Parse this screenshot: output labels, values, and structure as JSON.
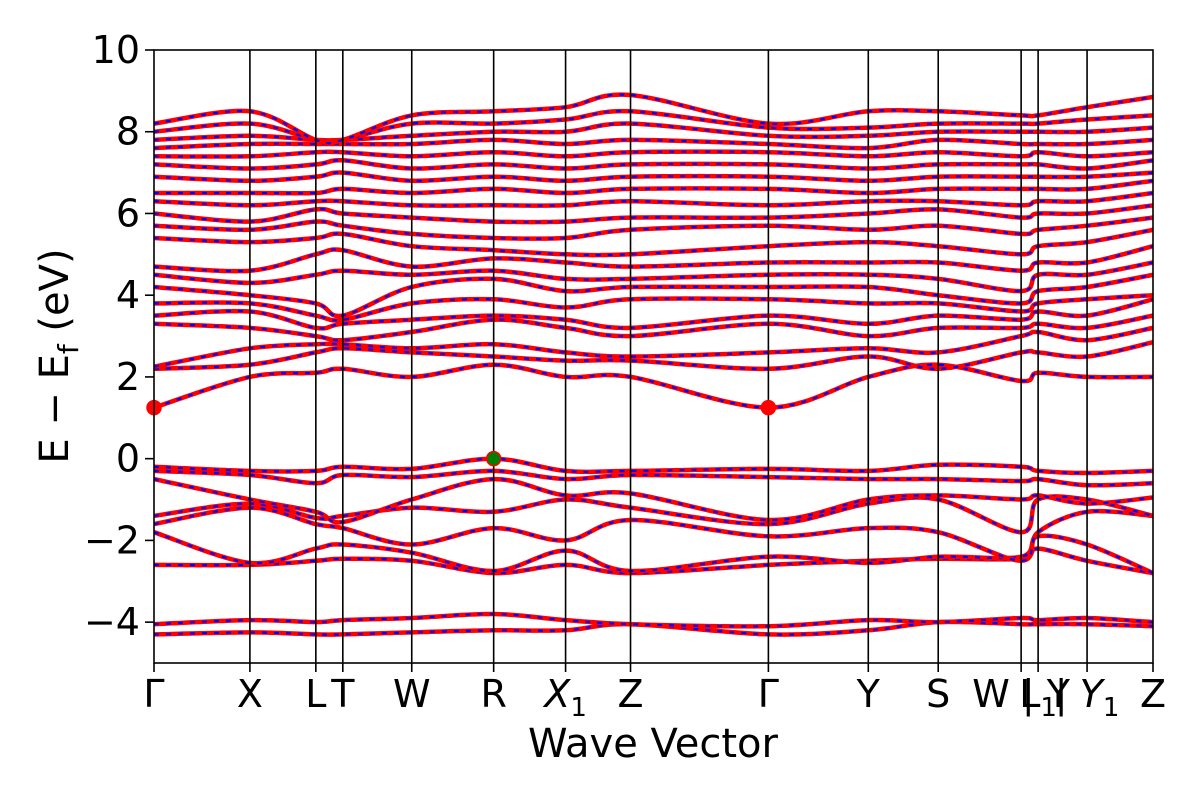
{
  "chart_data": {
    "type": "line",
    "xlabel": "Wave Vector",
    "ylabel": "E − E_f (eV)",
    "ylabel_main": "E − E",
    "ylabel_sub": "f",
    "ylabel_unit": " (eV)",
    "ylim": [
      -5,
      10
    ],
    "yticks": [
      10,
      8,
      6,
      4,
      2,
      0,
      -2,
      -4
    ],
    "ytick_labels": [
      "10",
      "8",
      "6",
      "4",
      "2",
      "0",
      "−2",
      "−4"
    ],
    "grid": false,
    "colors": {
      "band_solid": "#ff0000",
      "band_dash": "#0000ff",
      "cbm_marker": "#ff0000",
      "vbm_marker": "#008000",
      "kpath_line": "#000000"
    },
    "kpoints": [
      {
        "label": "Γ",
        "x": 0.0
      },
      {
        "label": "X",
        "x": 0.096
      },
      {
        "label": "L",
        "x": 0.162
      },
      {
        "label": "T",
        "x": 0.189
      },
      {
        "label": "W",
        "x": 0.258
      },
      {
        "label": "R",
        "x": 0.34
      },
      {
        "label": "X",
        "sub": "1",
        "italic": true,
        "x": 0.412
      },
      {
        "label": "Z",
        "x": 0.477
      },
      {
        "label": "Γ",
        "x": 0.615
      },
      {
        "label": "Y",
        "x": 0.715
      },
      {
        "label": "S",
        "x": 0.785
      },
      {
        "label": "W | Y",
        "x": 0.868
      },
      {
        "label": "L",
        "sub": "1",
        "x": 0.885
      },
      {
        "label": "| Y",
        "sub": "1",
        "italic": true,
        "x": 0.934
      },
      {
        "label": "Z",
        "x": 1.0
      }
    ],
    "special_points": [
      {
        "name": "CBM",
        "x": 0.0,
        "y": 1.25
      },
      {
        "name": "CBM",
        "x": 0.615,
        "y": 1.25
      },
      {
        "name": "VBM",
        "x": 0.34,
        "y": 0.0
      }
    ],
    "series": [
      {
        "values": [
          -4.3,
          -4.25,
          -4.3,
          -4.3,
          -4.25,
          -4.2,
          -4.2,
          -4.05,
          -4.3,
          -4.2,
          -4.0,
          -4.05,
          -4.05,
          -4.05,
          -4.1
        ]
      },
      {
        "values": [
          -4.05,
          -3.95,
          -4.0,
          -3.95,
          -3.9,
          -3.8,
          -3.95,
          -4.05,
          -4.1,
          -3.95,
          -4.0,
          -3.9,
          -3.95,
          -3.9,
          -4.0
        ]
      },
      {
        "values": [
          -2.6,
          -2.6,
          -2.5,
          -2.45,
          -2.5,
          -2.8,
          -2.6,
          -2.8,
          -2.6,
          -2.5,
          -2.45,
          -2.45,
          -2.2,
          -2.5,
          -2.8
        ]
      },
      {
        "values": [
          -1.8,
          -2.55,
          -2.2,
          -2.1,
          -2.3,
          -2.75,
          -2.25,
          -2.75,
          -2.4,
          -2.55,
          -2.4,
          -2.4,
          -1.9,
          -2.1,
          -2.8
        ]
      },
      {
        "values": [
          -1.6,
          -1.2,
          -1.6,
          -1.7,
          -2.1,
          -1.7,
          -2.0,
          -1.5,
          -1.9,
          -1.7,
          -1.8,
          -2.5,
          -1.8,
          -1.3,
          -1.4
        ]
      },
      {
        "values": [
          -1.4,
          -1.1,
          -1.45,
          -1.4,
          -1.2,
          -1.3,
          -1.0,
          -1.2,
          -1.6,
          -1.1,
          -1.0,
          -1.8,
          -1.0,
          -1.0,
          -1.4
        ]
      },
      {
        "values": [
          -0.5,
          -1.0,
          -1.3,
          -1.55,
          -1.0,
          -0.5,
          -0.9,
          -0.85,
          -1.5,
          -1.0,
          -0.9,
          -1.0,
          -0.9,
          -1.1,
          -0.95
        ]
      },
      {
        "values": [
          -0.3,
          -0.4,
          -0.6,
          -0.4,
          -0.45,
          -0.3,
          -0.5,
          -0.4,
          -0.45,
          -0.5,
          -0.5,
          -0.55,
          -0.5,
          -0.65,
          -0.6
        ]
      },
      {
        "values": [
          -0.2,
          -0.3,
          -0.3,
          -0.2,
          -0.25,
          0.0,
          -0.3,
          -0.3,
          -0.25,
          -0.3,
          -0.15,
          -0.2,
          -0.3,
          -0.35,
          -0.3
        ]
      },
      {
        "values": [
          1.25,
          2.0,
          2.1,
          2.2,
          2.0,
          2.3,
          2.0,
          2.0,
          1.25,
          2.0,
          2.3,
          1.9,
          2.1,
          2.0,
          2.0
        ]
      },
      {
        "values": [
          2.2,
          2.3,
          2.6,
          2.7,
          2.6,
          2.5,
          2.4,
          2.4,
          2.2,
          2.5,
          2.2,
          2.6,
          2.6,
          2.5,
          2.85
        ]
      },
      {
        "values": [
          2.25,
          2.7,
          2.8,
          2.8,
          2.7,
          2.8,
          2.6,
          2.5,
          2.6,
          2.7,
          2.6,
          3.0,
          3.1,
          2.9,
          3.2
        ]
      },
      {
        "values": [
          3.3,
          3.2,
          3.0,
          2.9,
          3.1,
          3.4,
          3.2,
          3.0,
          3.3,
          3.0,
          3.2,
          3.2,
          3.3,
          3.2,
          3.5
        ]
      },
      {
        "values": [
          3.5,
          3.6,
          3.2,
          3.3,
          3.4,
          3.5,
          3.4,
          3.2,
          3.5,
          3.3,
          3.5,
          3.4,
          3.6,
          3.5,
          3.9
        ]
      },
      {
        "values": [
          3.8,
          3.8,
          3.5,
          3.4,
          3.8,
          3.9,
          3.7,
          3.9,
          3.9,
          3.8,
          3.8,
          3.6,
          3.8,
          3.9,
          4.0
        ]
      },
      {
        "values": [
          4.2,
          4.0,
          3.8,
          3.5,
          4.2,
          4.4,
          4.1,
          4.2,
          4.2,
          4.2,
          4.0,
          3.8,
          4.1,
          4.2,
          4.5
        ]
      },
      {
        "values": [
          4.5,
          4.3,
          4.5,
          4.6,
          4.5,
          4.6,
          4.4,
          4.4,
          4.5,
          4.5,
          4.4,
          4.1,
          4.5,
          4.5,
          4.8
        ]
      },
      {
        "values": [
          4.7,
          4.6,
          5.0,
          5.1,
          4.7,
          4.9,
          4.8,
          4.7,
          4.8,
          4.8,
          4.8,
          4.6,
          4.8,
          4.8,
          5.2
        ]
      },
      {
        "values": [
          5.4,
          5.3,
          5.4,
          5.5,
          5.2,
          5.1,
          5.0,
          5.0,
          5.2,
          5.3,
          5.2,
          5.0,
          5.2,
          5.3,
          5.6
        ]
      },
      {
        "values": [
          5.7,
          5.6,
          5.8,
          5.7,
          5.5,
          5.4,
          5.4,
          5.6,
          5.7,
          5.6,
          5.7,
          5.5,
          5.6,
          5.7,
          5.9
        ]
      },
      {
        "values": [
          6.0,
          5.8,
          6.1,
          6.0,
          5.9,
          5.8,
          5.8,
          5.9,
          5.9,
          6.0,
          6.1,
          5.9,
          6.0,
          6.0,
          6.2
        ]
      },
      {
        "values": [
          6.3,
          6.2,
          6.3,
          6.3,
          6.2,
          6.2,
          6.2,
          6.3,
          6.2,
          6.3,
          6.3,
          6.2,
          6.3,
          6.3,
          6.5
        ]
      },
      {
        "values": [
          6.5,
          6.5,
          6.5,
          6.6,
          6.5,
          6.6,
          6.5,
          6.6,
          6.6,
          6.5,
          6.6,
          6.6,
          6.6,
          6.6,
          6.8
        ]
      },
      {
        "values": [
          6.9,
          6.8,
          6.9,
          7.0,
          6.8,
          6.9,
          6.8,
          6.9,
          6.9,
          6.8,
          6.9,
          6.9,
          6.9,
          6.9,
          7.0
        ]
      },
      {
        "values": [
          7.2,
          7.1,
          7.2,
          7.3,
          7.1,
          7.2,
          7.1,
          7.2,
          7.2,
          7.1,
          7.2,
          7.2,
          7.2,
          7.1,
          7.3
        ]
      },
      {
        "values": [
          7.4,
          7.4,
          7.5,
          7.5,
          7.4,
          7.5,
          7.4,
          7.5,
          7.5,
          7.4,
          7.5,
          7.4,
          7.5,
          7.4,
          7.5
        ]
      },
      {
        "values": [
          7.6,
          7.7,
          7.7,
          7.7,
          7.7,
          7.8,
          7.7,
          7.8,
          7.7,
          7.6,
          7.8,
          7.7,
          7.7,
          7.7,
          7.8
        ]
      },
      {
        "values": [
          7.8,
          7.9,
          7.8,
          7.8,
          7.9,
          8.0,
          8.0,
          8.2,
          7.9,
          7.9,
          8.0,
          8.0,
          8.0,
          8.0,
          8.1
        ]
      },
      {
        "values": [
          8.0,
          8.2,
          7.8,
          7.8,
          8.2,
          8.2,
          8.3,
          8.5,
          8.1,
          8.1,
          8.2,
          8.2,
          8.2,
          8.3,
          8.4
        ]
      },
      {
        "values": [
          8.2,
          8.5,
          7.8,
          7.8,
          8.4,
          8.5,
          8.6,
          8.9,
          8.2,
          8.5,
          8.5,
          8.4,
          8.4,
          8.6,
          8.85
        ]
      }
    ]
  }
}
